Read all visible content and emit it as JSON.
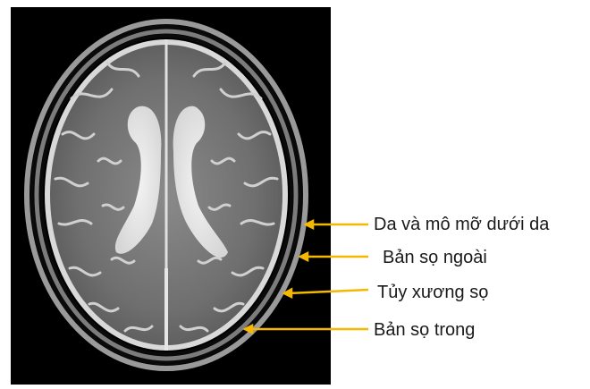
{
  "labels": [
    {
      "id": "skin",
      "text": "Da và mô mỡ dưới da"
    },
    {
      "id": "outer-table",
      "text": "Bản sọ ngoài"
    },
    {
      "id": "diploe",
      "text": "Tủy xương sọ"
    },
    {
      "id": "inner-table",
      "text": "Bản sọ trong"
    }
  ],
  "colors": {
    "background": "#ffffff",
    "scan_background": "#000000",
    "pointer": "#f5b800",
    "label_text": "#1a1a1a"
  }
}
